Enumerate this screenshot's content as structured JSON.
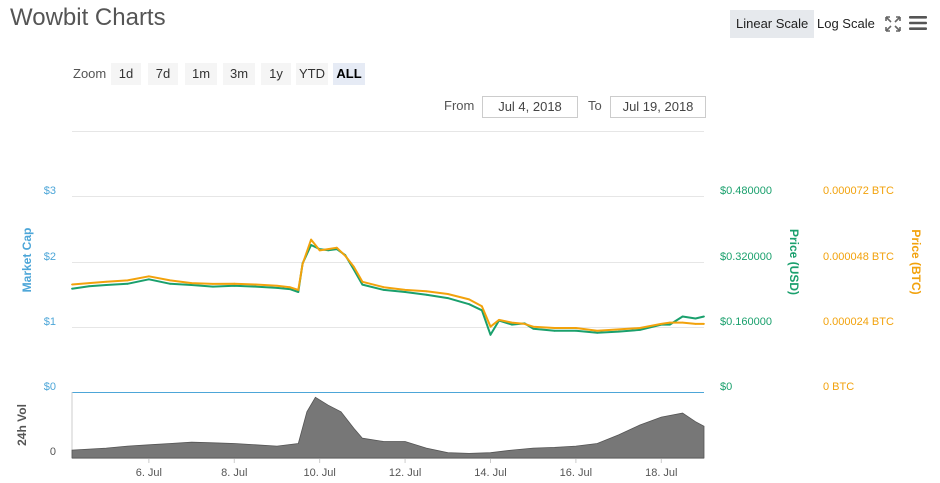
{
  "title": "Wowbit Charts",
  "toolbar": {
    "linear_scale": "Linear Scale",
    "log_scale": "Log Scale",
    "fullscreen_icon": "fullscreen-icon",
    "menu_icon": "menu-icon"
  },
  "zoom": {
    "label": "Zoom",
    "buttons": [
      "1d",
      "7d",
      "1m",
      "3m",
      "1y",
      "YTD",
      "ALL"
    ],
    "active": "ALL"
  },
  "range": {
    "from_label": "From",
    "from_value": "Jul 4, 2018",
    "to_label": "To",
    "to_value": "Jul 19, 2018"
  },
  "colors": {
    "usd": "#1aa06d",
    "btc": "#f2a20c",
    "market_cap_axis": "#4da6d8",
    "volume": "#777777",
    "volume_stroke": "#555555"
  },
  "chart_data": {
    "type": "line",
    "x_tick_labels": [
      "6. Jul",
      "8. Jul",
      "10. Jul",
      "12. Jul",
      "14. Jul",
      "16. Jul",
      "18. Jul"
    ],
    "x_range_days": [
      4.2,
      19.0
    ],
    "axes": {
      "market_cap": {
        "label": "Market Cap",
        "ticks": [
          "$0",
          "$1",
          "$2",
          "$3"
        ],
        "range": [
          0,
          3
        ]
      },
      "price_usd": {
        "label": "Price (USD)",
        "ticks": [
          "$0",
          "$0.160000",
          "$0.320000",
          "$0.480000"
        ],
        "range": [
          0,
          0.48
        ]
      },
      "price_btc": {
        "label": "Price (BTC)",
        "ticks": [
          "0 BTC",
          "0.000024 BTC",
          "0.000048 BTC",
          "0.000072 BTC"
        ],
        "range": [
          0,
          7.2e-05
        ]
      },
      "volume": {
        "label": "24h Vol",
        "ticks": [
          "0"
        ]
      }
    },
    "series": [
      {
        "name": "Price (USD)",
        "x": [
          4.2,
          4.6,
          5.0,
          5.5,
          6.0,
          6.5,
          7.0,
          7.5,
          8.0,
          8.5,
          9.0,
          9.3,
          9.5,
          9.6,
          9.8,
          10.0,
          10.2,
          10.4,
          10.6,
          10.8,
          11.0,
          11.5,
          12.0,
          12.5,
          13.0,
          13.5,
          13.8,
          14.0,
          14.2,
          14.5,
          14.8,
          15.0,
          15.5,
          16.0,
          16.5,
          17.0,
          17.5,
          18.0,
          18.2,
          18.5,
          18.8,
          19.0
        ],
        "values": [
          0.253,
          0.259,
          0.262,
          0.265,
          0.276,
          0.265,
          0.262,
          0.258,
          0.26,
          0.258,
          0.255,
          0.252,
          0.245,
          0.315,
          0.36,
          0.35,
          0.347,
          0.35,
          0.335,
          0.3,
          0.263,
          0.25,
          0.245,
          0.238,
          0.23,
          0.215,
          0.2,
          0.14,
          0.175,
          0.165,
          0.168,
          0.155,
          0.15,
          0.15,
          0.145,
          0.148,
          0.152,
          0.165,
          0.165,
          0.185,
          0.18,
          0.185
        ]
      },
      {
        "name": "Price (BTC)",
        "x": [
          4.2,
          4.6,
          5.0,
          5.5,
          6.0,
          6.5,
          7.0,
          7.5,
          8.0,
          8.5,
          9.0,
          9.3,
          9.5,
          9.6,
          9.8,
          10.0,
          10.2,
          10.4,
          10.6,
          10.8,
          11.0,
          11.5,
          12.0,
          12.5,
          13.0,
          13.5,
          13.8,
          14.0,
          14.2,
          14.5,
          14.8,
          15.0,
          15.5,
          16.0,
          16.5,
          17.0,
          17.5,
          18.0,
          18.2,
          18.5,
          18.8,
          19.0
        ],
        "values": [
          3.95e-05,
          4e-05,
          4.05e-05,
          4.1e-05,
          4.25e-05,
          4.1e-05,
          4e-05,
          3.97e-05,
          3.98e-05,
          3.95e-05,
          3.9e-05,
          3.85e-05,
          3.75e-05,
          4.7e-05,
          5.6e-05,
          5.2e-05,
          5.25e-05,
          5.3e-05,
          5e-05,
          4.6e-05,
          4.05e-05,
          3.85e-05,
          3.75e-05,
          3.7e-05,
          3.6e-05,
          3.4e-05,
          3.15e-05,
          2.4e-05,
          2.65e-05,
          2.55e-05,
          2.5e-05,
          2.4e-05,
          2.35e-05,
          2.35e-05,
          2.25e-05,
          2.3e-05,
          2.35e-05,
          2.5e-05,
          2.55e-05,
          2.55e-05,
          2.5e-05,
          2.5e-05
        ]
      },
      {
        "name": "24h Vol",
        "x": [
          4.2,
          5.0,
          5.5,
          6.0,
          6.5,
          7.0,
          7.5,
          8.0,
          8.5,
          9.0,
          9.5,
          9.7,
          9.9,
          10.2,
          10.5,
          10.8,
          11.0,
          11.5,
          12.0,
          12.5,
          13.0,
          13.5,
          14.0,
          14.5,
          15.0,
          15.5,
          16.0,
          16.5,
          17.0,
          17.5,
          18.0,
          18.5,
          18.8,
          19.0
        ],
        "values": [
          0.12,
          0.15,
          0.18,
          0.2,
          0.22,
          0.24,
          0.23,
          0.22,
          0.2,
          0.18,
          0.22,
          0.7,
          0.92,
          0.8,
          0.7,
          0.45,
          0.3,
          0.25,
          0.25,
          0.15,
          0.08,
          0.07,
          0.08,
          0.12,
          0.15,
          0.16,
          0.18,
          0.22,
          0.35,
          0.5,
          0.62,
          0.68,
          0.55,
          0.48
        ]
      }
    ],
    "grid": true,
    "legend": "none"
  }
}
